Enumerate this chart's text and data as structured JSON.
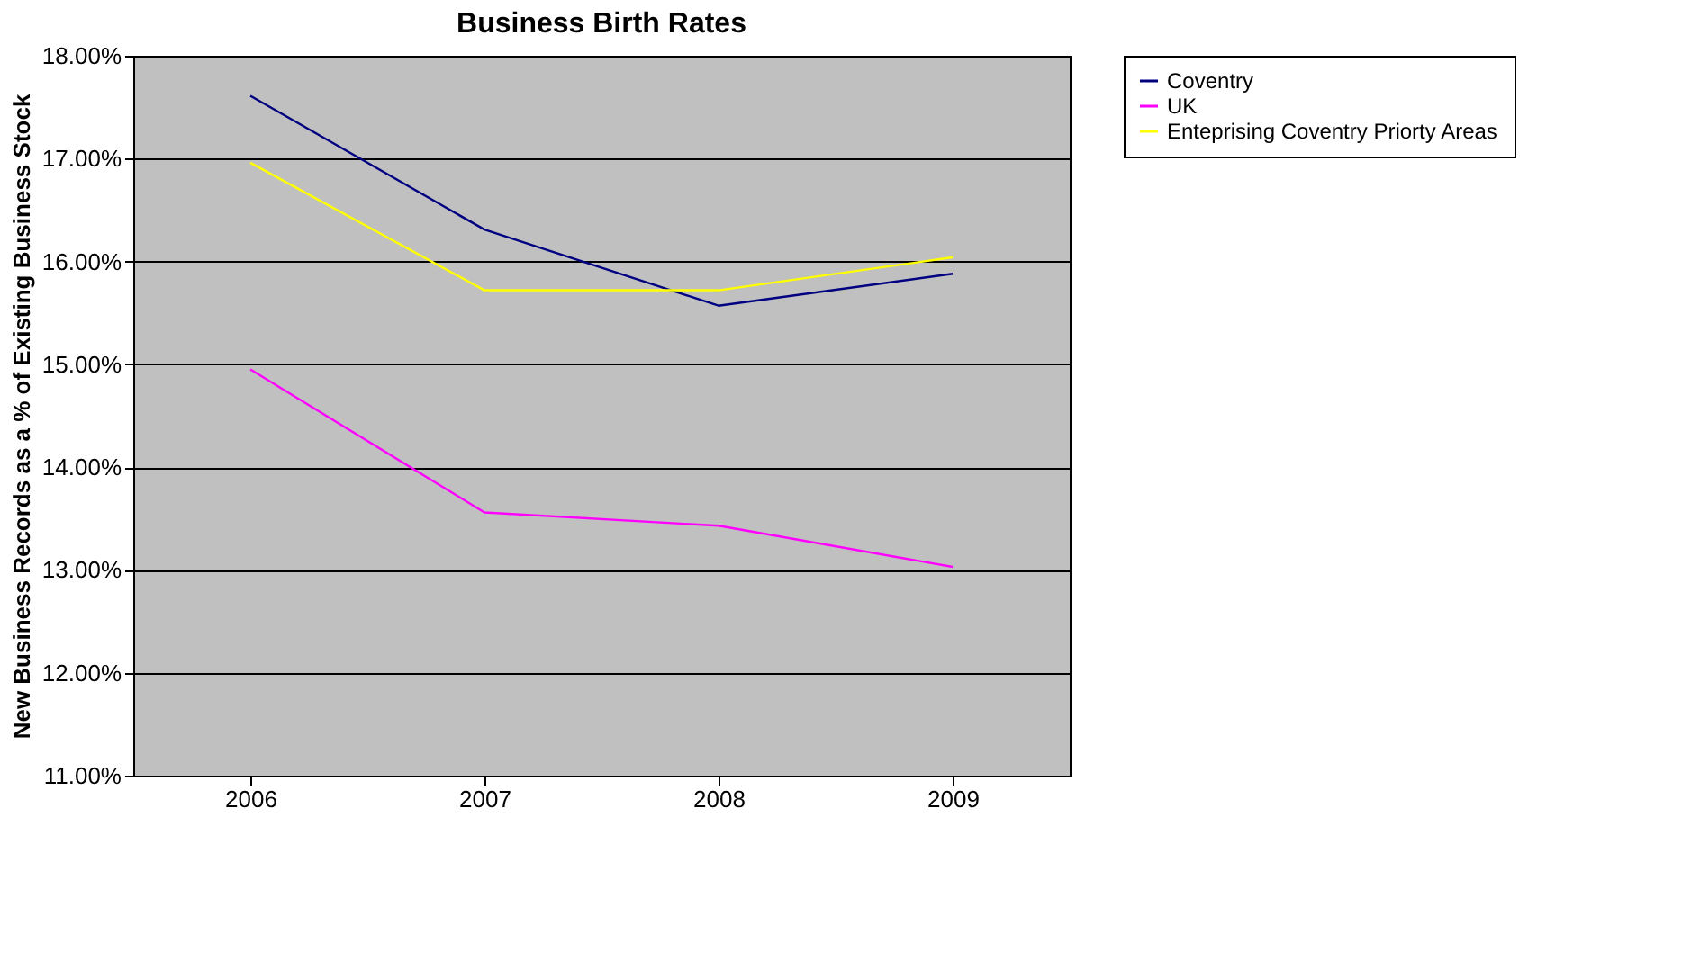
{
  "chart_data": {
    "type": "line",
    "title": "Business Birth Rates",
    "ylabel": "New Business Records as a % of Existing Business Stock",
    "categories": [
      "2006",
      "2007",
      "2008",
      "2009"
    ],
    "series": [
      {
        "name": "Coventry",
        "color": "#000080",
        "values": [
          17.61,
          16.31,
          15.57,
          15.88
        ]
      },
      {
        "name": "UK",
        "color": "#ff00ff",
        "values": [
          14.95,
          13.56,
          13.43,
          13.03
        ]
      },
      {
        "name": "Enteprising Coventry Priorty Areas",
        "color": "#ffff00",
        "values": [
          16.96,
          15.72,
          15.72,
          16.04
        ]
      }
    ],
    "ylim": [
      11,
      18
    ],
    "yticks": [
      {
        "value": 11,
        "label": "11.00%"
      },
      {
        "value": 12,
        "label": "12.00%"
      },
      {
        "value": 13,
        "label": "13.00%"
      },
      {
        "value": 14,
        "label": "14.00%"
      },
      {
        "value": 15,
        "label": "15.00%"
      },
      {
        "value": 16,
        "label": "16.00%"
      },
      {
        "value": 17,
        "label": "17.00%"
      },
      {
        "value": 18,
        "label": "18.00%"
      }
    ],
    "grid": "y",
    "legend": "top right",
    "marker": "none",
    "line_style": "solid"
  }
}
